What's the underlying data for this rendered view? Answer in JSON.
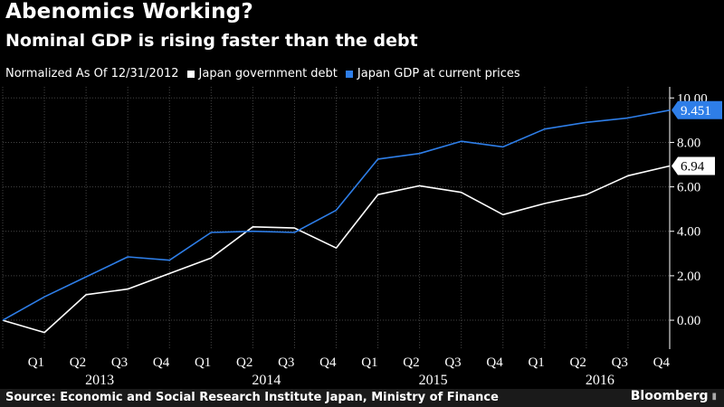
{
  "header": {
    "title": "Abenomics Working?",
    "subtitle": "Nominal GDP is rising faster than the debt"
  },
  "legend": {
    "note": "Normalized As Of 12/31/2012",
    "items": [
      {
        "label": "Japan government debt",
        "color": "#ffffff"
      },
      {
        "label": "Japan GDP at current prices",
        "color": "#2e7ee8"
      }
    ]
  },
  "footer": {
    "source": "Source: Economic and Social Research Institute Japan, Ministry of Finance",
    "brand": "Bloomberg"
  },
  "chart_data": {
    "type": "line",
    "x": [
      "2012 Q4",
      "2013 Q1",
      "2013 Q2",
      "2013 Q3",
      "2013 Q4",
      "2014 Q1",
      "2014 Q2",
      "2014 Q3",
      "2014 Q4",
      "2015 Q1",
      "2015 Q2",
      "2015 Q3",
      "2015 Q4",
      "2016 Q1",
      "2016 Q2",
      "2016 Q3",
      "2016 Q4"
    ],
    "tick_labels": [
      "Q1",
      "Q2",
      "Q3",
      "Q4",
      "Q1",
      "Q2",
      "Q3",
      "Q4",
      "Q1",
      "Q2",
      "Q3",
      "Q4",
      "Q1",
      "Q2",
      "Q3",
      "Q4"
    ],
    "years": [
      {
        "label": "2013",
        "quarters": [
          "Q1",
          "Q4"
        ]
      },
      {
        "label": "2014",
        "quarters": [
          "Q1",
          "Q4"
        ]
      },
      {
        "label": "2015",
        "quarters": [
          "Q1",
          "Q4"
        ]
      },
      {
        "label": "2016",
        "quarters": [
          "Q1",
          "Q4"
        ]
      }
    ],
    "y_ticks": [
      "0.00",
      "2.00",
      "4.00",
      "6.00",
      "8.00",
      "10.00"
    ],
    "ylim": [
      -1.3,
      10.5
    ],
    "grid": true,
    "y_axis_side": "right",
    "series": [
      {
        "name": "Japan government debt",
        "color": "#ffffff",
        "values": [
          0.0,
          -0.55,
          1.15,
          1.4,
          2.1,
          2.8,
          4.2,
          4.15,
          3.25,
          5.65,
          6.05,
          5.75,
          4.75,
          5.25,
          5.65,
          6.5,
          6.94
        ],
        "last_label": "6.94"
      },
      {
        "name": "Japan GDP at current prices",
        "color": "#2e7ee8",
        "values": [
          0.0,
          1.05,
          1.95,
          2.85,
          2.7,
          3.95,
          4.0,
          3.95,
          4.95,
          7.25,
          7.5,
          8.05,
          7.8,
          8.6,
          8.9,
          9.1,
          9.451
        ],
        "last_label": "9.451"
      }
    ]
  }
}
